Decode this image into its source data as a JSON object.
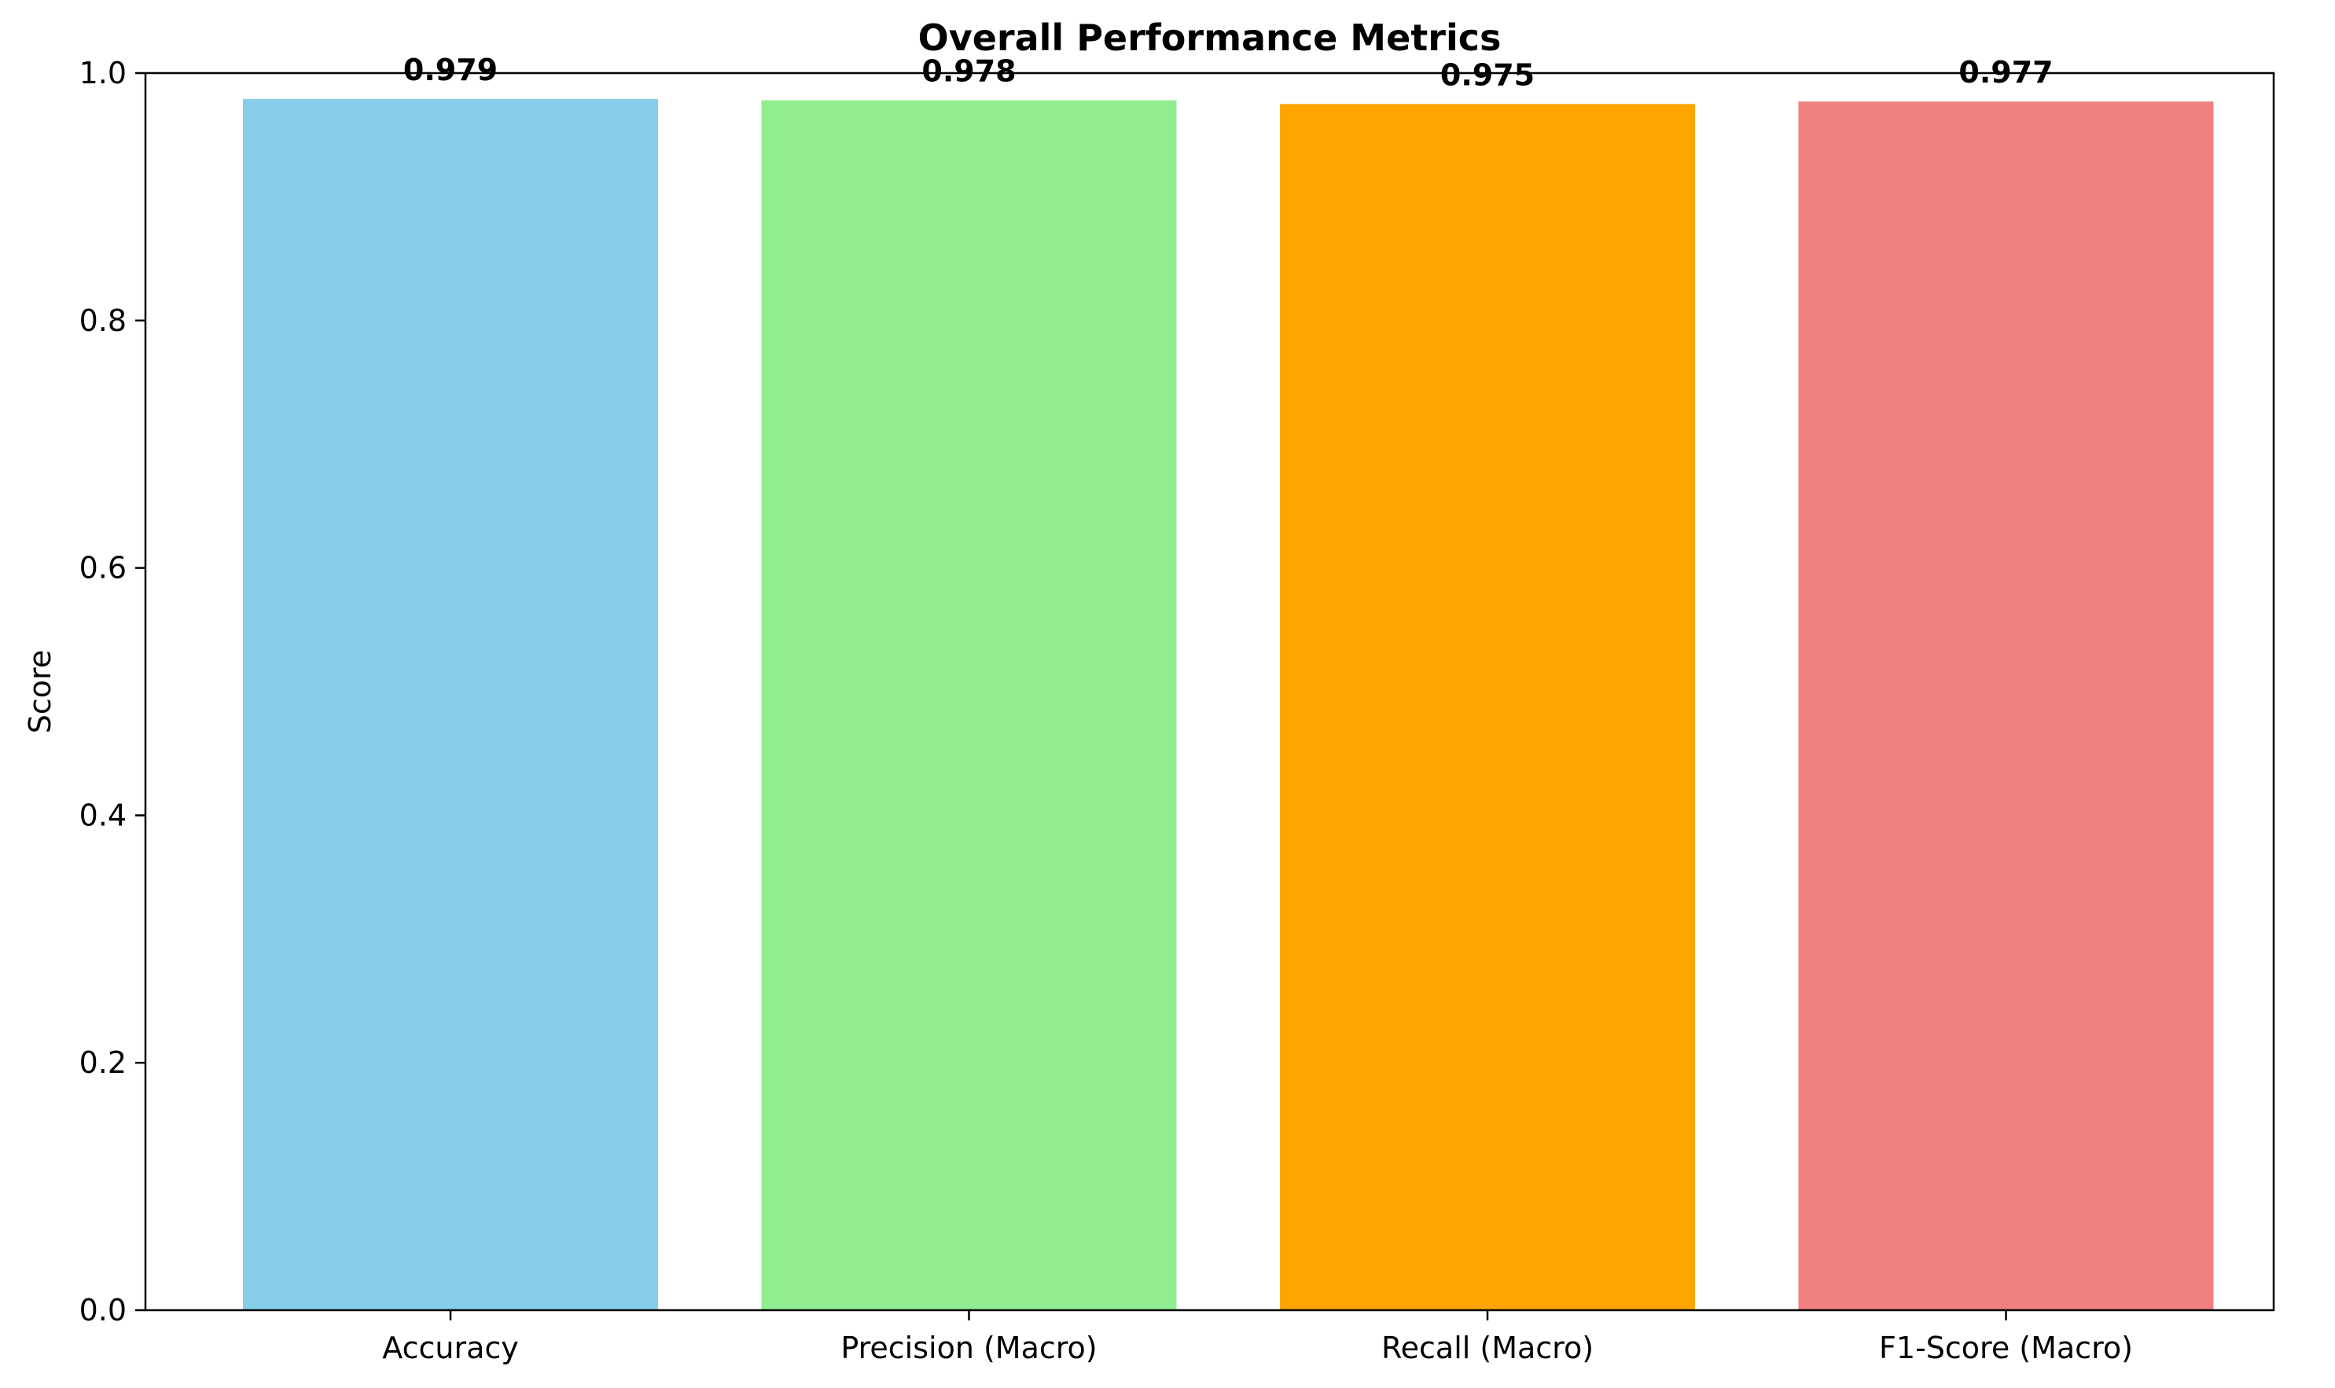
{
  "chart_data": {
    "type": "bar",
    "title": "Overall Performance Metrics",
    "xlabel": "",
    "ylabel": "Score",
    "ylim": [
      0,
      1.0
    ],
    "yticks": [
      "0.0",
      "0.2",
      "0.4",
      "0.6",
      "0.8",
      "1.0"
    ],
    "categories": [
      "Accuracy",
      "Precision (Macro)",
      "Recall (Macro)",
      "F1-Score (Macro)"
    ],
    "values": [
      0.979,
      0.978,
      0.975,
      0.977
    ],
    "data_labels": [
      "0.979",
      "0.978",
      "0.975",
      "0.977"
    ],
    "colors": [
      "#87ceeb",
      "#90ee90",
      "#ffa500",
      "#f08080"
    ],
    "grid": false,
    "legend": "none"
  }
}
